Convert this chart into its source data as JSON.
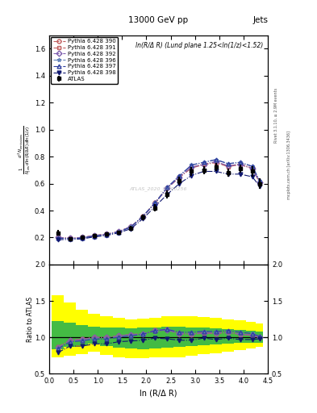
{
  "title": "13000 GeV pp",
  "title_right": "Jets",
  "annotation": "ln(R/Δ R) (Lund plane 1.25<ln(1/z)<1.52)",
  "watermark": "ATLAS_2020_I1790256",
  "ylabel_main": "$\\frac{1}{N_{jets}}\\frac{d^2 N_{emissions}}{d\\ln(R/\\Delta R)\\,d\\ln(1/z)}$",
  "ylabel_ratio": "Ratio to ATLAS",
  "xlabel": "ln (R/Δ R)",
  "right_label": "Rivet 3.1.10, ≥ 2.9M events",
  "right_label2": "mcplots.cern.ch [arXiv:1306.3436]",
  "xlim": [
    0,
    4.5
  ],
  "ylim_main": [
    0,
    1.7
  ],
  "ylim_ratio": [
    0.5,
    2.0
  ],
  "yticks_main": [
    0.2,
    0.4,
    0.6,
    0.8,
    1.0,
    1.2,
    1.4,
    1.6
  ],
  "yticks_ratio": [
    0.5,
    1.0,
    1.5,
    2.0
  ],
  "atlas_x": [
    0.18,
    0.43,
    0.68,
    0.93,
    1.18,
    1.43,
    1.68,
    1.93,
    2.18,
    2.43,
    2.68,
    2.93,
    3.18,
    3.43,
    3.68,
    3.93,
    4.18,
    4.33
  ],
  "atlas_y": [
    0.235,
    0.19,
    0.205,
    0.215,
    0.225,
    0.24,
    0.27,
    0.35,
    0.42,
    0.52,
    0.62,
    0.69,
    0.7,
    0.72,
    0.68,
    0.71,
    0.69,
    0.6
  ],
  "atlas_yerr": [
    0.02,
    0.015,
    0.012,
    0.012,
    0.012,
    0.012,
    0.015,
    0.02,
    0.025,
    0.03,
    0.03,
    0.03,
    0.03,
    0.03,
    0.03,
    0.03,
    0.04,
    0.04
  ],
  "series": [
    {
      "label": "Pythia 6.428 390",
      "color": "#c06060",
      "linestyle": "-.",
      "marker": "o",
      "fillstyle": "none",
      "x": [
        0.18,
        0.43,
        0.68,
        0.93,
        1.18,
        1.43,
        1.68,
        1.93,
        2.18,
        2.43,
        2.68,
        2.93,
        3.18,
        3.43,
        3.68,
        3.93,
        4.18,
        4.33
      ],
      "y": [
        0.2,
        0.195,
        0.2,
        0.215,
        0.225,
        0.245,
        0.28,
        0.36,
        0.46,
        0.57,
        0.65,
        0.72,
        0.745,
        0.76,
        0.73,
        0.745,
        0.715,
        0.61
      ],
      "ratio": [
        0.87,
        0.96,
        0.975,
        1.0,
        1.0,
        1.02,
        1.04,
        1.05,
        1.1,
        1.11,
        1.06,
        1.05,
        1.065,
        1.06,
        1.075,
        1.045,
        1.035,
        1.005
      ]
    },
    {
      "label": "Pythia 6.428 391",
      "color": "#c06060",
      "linestyle": "-.",
      "marker": "s",
      "fillstyle": "none",
      "x": [
        0.18,
        0.43,
        0.68,
        0.93,
        1.18,
        1.43,
        1.68,
        1.93,
        2.18,
        2.43,
        2.68,
        2.93,
        3.18,
        3.43,
        3.68,
        3.93,
        4.18,
        4.33
      ],
      "y": [
        0.2,
        0.195,
        0.2,
        0.215,
        0.225,
        0.245,
        0.28,
        0.355,
        0.455,
        0.565,
        0.645,
        0.715,
        0.74,
        0.755,
        0.725,
        0.74,
        0.71,
        0.608
      ],
      "ratio": [
        0.865,
        0.96,
        0.97,
        1.0,
        1.0,
        1.02,
        1.04,
        1.045,
        1.09,
        1.1,
        1.05,
        1.04,
        1.057,
        1.05,
        1.065,
        1.04,
        1.025,
        1.0
      ]
    },
    {
      "label": "Pythia 6.428 392",
      "color": "#8060b0",
      "linestyle": "-.",
      "marker": "D",
      "fillstyle": "none",
      "x": [
        0.18,
        0.43,
        0.68,
        0.93,
        1.18,
        1.43,
        1.68,
        1.93,
        2.18,
        2.43,
        2.68,
        2.93,
        3.18,
        3.43,
        3.68,
        3.93,
        4.18,
        4.33
      ],
      "y": [
        0.2,
        0.195,
        0.2,
        0.215,
        0.225,
        0.245,
        0.28,
        0.355,
        0.455,
        0.565,
        0.648,
        0.722,
        0.742,
        0.762,
        0.732,
        0.742,
        0.712,
        0.612
      ],
      "ratio": [
        0.862,
        0.958,
        0.97,
        1.0,
        1.0,
        1.02,
        1.04,
        1.044,
        1.09,
        1.1,
        1.052,
        1.048,
        1.06,
        1.058,
        1.07,
        1.045,
        1.03,
        1.002
      ]
    },
    {
      "label": "Pythia 6.428 396",
      "color": "#6080b8",
      "linestyle": "-.",
      "marker": "*",
      "fillstyle": "none",
      "x": [
        0.18,
        0.43,
        0.68,
        0.93,
        1.18,
        1.43,
        1.68,
        1.93,
        2.18,
        2.43,
        2.68,
        2.93,
        3.18,
        3.43,
        3.68,
        3.93,
        4.18,
        4.33
      ],
      "y": [
        0.195,
        0.19,
        0.197,
        0.212,
        0.222,
        0.242,
        0.278,
        0.358,
        0.458,
        0.572,
        0.658,
        0.738,
        0.758,
        0.778,
        0.748,
        0.758,
        0.728,
        0.622
      ],
      "ratio": [
        0.845,
        0.94,
        0.955,
        0.978,
        0.978,
        1.005,
        1.022,
        1.045,
        1.095,
        1.112,
        1.072,
        1.072,
        1.085,
        1.082,
        1.095,
        1.072,
        1.055,
        1.015
      ]
    },
    {
      "label": "Pythia 6.428 397",
      "color": "#3040a0",
      "linestyle": "-.",
      "marker": "^",
      "fillstyle": "none",
      "x": [
        0.18,
        0.43,
        0.68,
        0.93,
        1.18,
        1.43,
        1.68,
        1.93,
        2.18,
        2.43,
        2.68,
        2.93,
        3.18,
        3.43,
        3.68,
        3.93,
        4.18,
        4.33
      ],
      "y": [
        0.196,
        0.191,
        0.196,
        0.211,
        0.221,
        0.241,
        0.277,
        0.357,
        0.457,
        0.571,
        0.657,
        0.737,
        0.757,
        0.777,
        0.747,
        0.757,
        0.727,
        0.621
      ],
      "ratio": [
        0.843,
        0.938,
        0.953,
        0.976,
        0.976,
        1.002,
        1.02,
        1.043,
        1.093,
        1.11,
        1.07,
        1.07,
        1.082,
        1.08,
        1.092,
        1.07,
        1.052,
        1.012
      ]
    },
    {
      "label": "Pythia 6.428 398",
      "color": "#101870",
      "linestyle": "-.",
      "marker": "v",
      "fillstyle": "full",
      "x": [
        0.18,
        0.43,
        0.68,
        0.93,
        1.18,
        1.43,
        1.68,
        1.93,
        2.18,
        2.43,
        2.68,
        2.93,
        3.18,
        3.43,
        3.68,
        3.93,
        4.18,
        4.33
      ],
      "y": [
        0.185,
        0.185,
        0.19,
        0.205,
        0.215,
        0.235,
        0.265,
        0.34,
        0.43,
        0.52,
        0.6,
        0.66,
        0.69,
        0.69,
        0.67,
        0.67,
        0.65,
        0.58
      ],
      "ratio": [
        0.79,
        0.88,
        0.88,
        0.91,
        0.91,
        0.94,
        0.95,
        0.96,
        0.99,
        0.98,
        0.96,
        0.96,
        0.99,
        0.97,
        0.99,
        0.97,
        0.97,
        0.98
      ]
    }
  ],
  "band_x": [
    0.18,
    0.43,
    0.68,
    0.93,
    1.18,
    1.43,
    1.68,
    1.93,
    2.18,
    2.43,
    2.68,
    2.93,
    3.18,
    3.43,
    3.68,
    3.93,
    4.18,
    4.33
  ],
  "band_yellow_ylo": [
    0.72,
    0.75,
    0.77,
    0.8,
    0.76,
    0.72,
    0.71,
    0.71,
    0.72,
    0.72,
    0.73,
    0.75,
    0.77,
    0.78,
    0.8,
    0.82,
    0.85,
    0.87
  ],
  "band_yellow_yhi": [
    1.58,
    1.48,
    1.38,
    1.32,
    1.29,
    1.27,
    1.25,
    1.26,
    1.27,
    1.29,
    1.29,
    1.29,
    1.28,
    1.27,
    1.25,
    1.23,
    1.21,
    1.19
  ],
  "band_green_ylo": [
    0.84,
    0.87,
    0.89,
    0.91,
    0.88,
    0.86,
    0.85,
    0.84,
    0.85,
    0.86,
    0.87,
    0.88,
    0.89,
    0.9,
    0.91,
    0.92,
    0.92,
    0.92
  ],
  "band_green_yhi": [
    1.22,
    1.2,
    1.17,
    1.15,
    1.14,
    1.13,
    1.12,
    1.13,
    1.14,
    1.15,
    1.15,
    1.14,
    1.13,
    1.12,
    1.11,
    1.1,
    1.09,
    1.08
  ]
}
